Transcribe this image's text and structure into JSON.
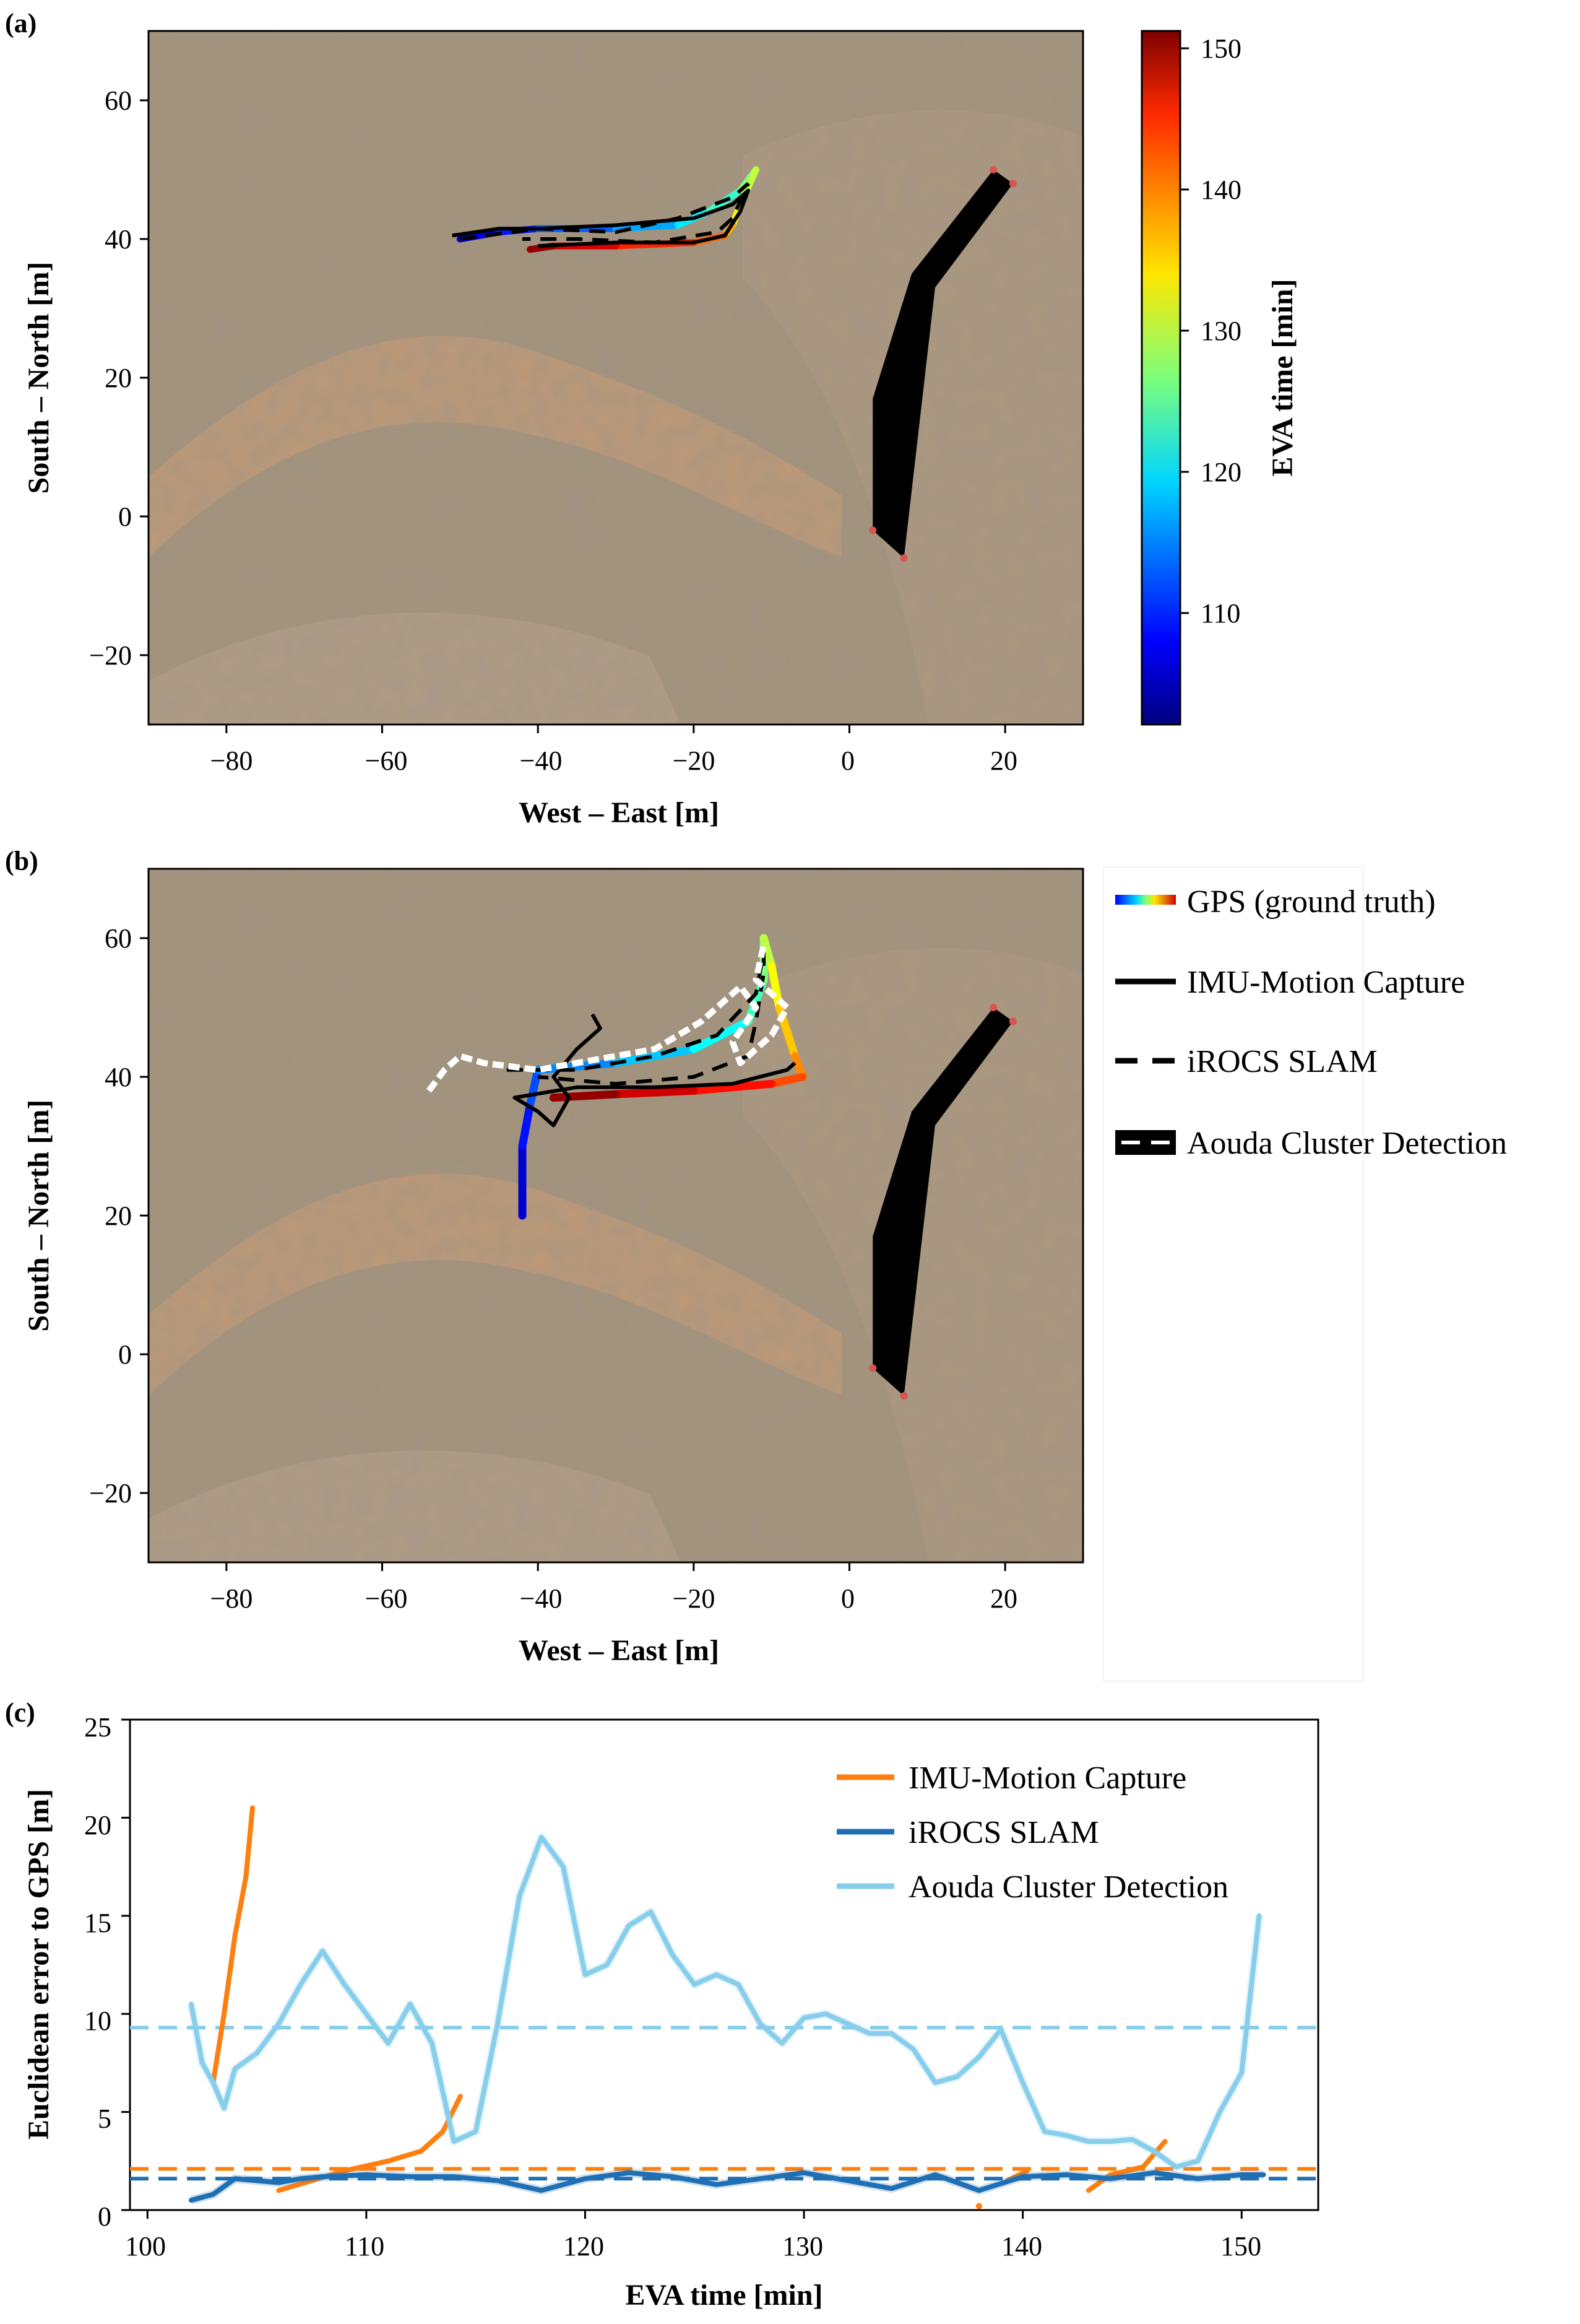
{
  "panel_a": {
    "letter": "(a)",
    "xlabel": "West – East [m]",
    "ylabel": "South – North [m]",
    "xticks": [
      "−80",
      "−60",
      "−40",
      "−20",
      "0",
      "20"
    ],
    "yticks": [
      "60",
      "40",
      "20",
      "0",
      "−20"
    ],
    "colorbar_label": "EVA time [min]",
    "colorbar_ticks": [
      "150",
      "140",
      "130",
      "120",
      "110"
    ]
  },
  "panel_b": {
    "letter": "(b)",
    "xlabel": "West – East [m]",
    "ylabel": "South – North [m]",
    "xticks": [
      "−80",
      "−60",
      "−40",
      "−20",
      "0",
      "20"
    ],
    "yticks": [
      "60",
      "40",
      "20",
      "0",
      "−20"
    ],
    "legend": [
      "GPS (ground truth)",
      "IMU-Motion Capture",
      "iROCS SLAM",
      "Aouda Cluster Detection"
    ]
  },
  "panel_c": {
    "letter": "(c)",
    "xlabel": "EVA time [min]",
    "ylabel": "Euclidean error to GPS [m]",
    "xticks": [
      "100",
      "110",
      "120",
      "130",
      "140",
      "150"
    ],
    "yticks": [
      "25",
      "20",
      "15",
      "10",
      "5",
      "0"
    ],
    "legend": [
      "IMU-Motion Capture",
      "iROCS SLAM",
      "Aouda Cluster Detection"
    ]
  },
  "colors": {
    "imu": "#ff7f0e",
    "slam": "#1f6fb4",
    "aouda": "#87ceeb",
    "aouda_detection_fill": "#000000",
    "background_ground": "#a7957d"
  },
  "chart_data": [
    {
      "type": "scatter",
      "panel": "a",
      "xlim": [
        -90,
        30
      ],
      "ylim": [
        -30,
        70
      ],
      "colorbar_range": [
        102,
        151
      ],
      "series": [
        {
          "name": "GPS (ground truth)",
          "color_by": "EVA time",
          "points": [
            [
              -50,
              40
            ],
            [
              -45,
              41
            ],
            [
              -40,
              41.5
            ],
            [
              -30,
              41.5
            ],
            [
              -22,
              42
            ],
            [
              -18,
              44
            ],
            [
              -14,
              47
            ],
            [
              -12,
              50
            ],
            [
              -14,
              45
            ],
            [
              -15,
              42
            ],
            [
              -16,
              40.5
            ],
            [
              -20,
              39.5
            ],
            [
              -30,
              39
            ],
            [
              -38,
              39
            ],
            [
              -41,
              38.5
            ]
          ]
        },
        {
          "name": "IMU-Motion Capture",
          "points": [
            [
              -51,
              40.5
            ],
            [
              -45,
              41.5
            ],
            [
              -40,
              41.5
            ],
            [
              -30,
              42
            ],
            [
              -20,
              43
            ],
            [
              -15,
              45
            ],
            [
              -13,
              47
            ],
            [
              -14,
              44
            ],
            [
              -16,
              40.5
            ],
            [
              -20,
              39.5
            ],
            [
              -30,
              39.5
            ],
            [
              -40,
              39
            ]
          ]
        },
        {
          "name": "iROCS SLAM",
          "points": [
            [
              -50,
              40
            ],
            [
              -40,
              41.5
            ],
            [
              -30,
              41
            ],
            [
              -22,
              43
            ],
            [
              -15,
              46
            ],
            [
              -13,
              48
            ],
            [
              -15,
              43
            ],
            [
              -17,
              41
            ],
            [
              -25,
              39.5
            ],
            [
              -35,
              40
            ],
            [
              -42,
              40
            ]
          ]
        }
      ],
      "detection_region": [
        [
          18.5,
          50
        ],
        [
          21,
          48
        ],
        [
          11,
          33
        ],
        [
          7,
          -6
        ],
        [
          3,
          -2
        ],
        [
          3,
          17
        ],
        [
          8,
          35
        ]
      ]
    },
    {
      "type": "scatter",
      "panel": "b",
      "xlim": [
        -90,
        30
      ],
      "ylim": [
        -30,
        70
      ],
      "series": [
        {
          "name": "GPS (ground truth)",
          "points": [
            [
              -42,
              20
            ],
            [
              -42,
              30
            ],
            [
              -41,
              36
            ],
            [
              -40,
              41
            ],
            [
              -30,
              42
            ],
            [
              -20,
              44
            ],
            [
              -13,
              48
            ],
            [
              -11,
              54
            ],
            [
              -11,
              60
            ],
            [
              -10,
              56
            ],
            [
              -9,
              50
            ],
            [
              -7,
              43
            ],
            [
              -6,
              40
            ],
            [
              -10,
              39
            ],
            [
              -20,
              38
            ],
            [
              -30,
              37.5
            ],
            [
              -38,
              37
            ]
          ]
        },
        {
          "name": "IMU-Motion Capture",
          "points": [
            [
              -33,
              49
            ],
            [
              -32,
              47
            ],
            [
              -35,
              44
            ],
            [
              -38,
              40
            ],
            [
              -36,
              37
            ],
            [
              -38,
              33
            ],
            [
              -40,
              35
            ],
            [
              -43,
              37
            ],
            [
              -35,
              38.5
            ],
            [
              -25,
              38.5
            ],
            [
              -15,
              39
            ],
            [
              -8,
              41
            ],
            [
              -7,
              42
            ]
          ]
        },
        {
          "name": "iROCS SLAM",
          "points": [
            [
              -44,
              41
            ],
            [
              -35,
              41
            ],
            [
              -25,
              43
            ],
            [
              -17,
              46
            ],
            [
              -12,
              52
            ],
            [
              -11,
              58
            ],
            [
              -11,
              55
            ],
            [
              -12,
              48
            ],
            [
              -13,
              43
            ],
            [
              -20,
              40
            ],
            [
              -30,
              39
            ],
            [
              -40,
              40
            ]
          ]
        },
        {
          "name": "Aouda Cluster Detection",
          "points": [
            [
              -54,
              38
            ],
            [
              -52,
              41
            ],
            [
              -50,
              43
            ],
            [
              -47,
              42
            ],
            [
              -40,
              41
            ],
            [
              -35,
              42
            ],
            [
              -25,
              44
            ],
            [
              -19,
              48
            ],
            [
              -14,
              53
            ],
            [
              -12,
              50
            ],
            [
              -15,
              45
            ],
            [
              -14,
              42
            ],
            [
              -10,
              46
            ],
            [
              -8,
              50
            ],
            [
              -12,
              54
            ],
            [
              -11,
              59
            ]
          ]
        }
      ],
      "detection_region": [
        [
          18.5,
          50
        ],
        [
          21,
          48
        ],
        [
          11,
          33
        ],
        [
          7,
          -6
        ],
        [
          3,
          -2
        ],
        [
          3,
          17
        ],
        [
          8,
          35
        ]
      ]
    },
    {
      "type": "line",
      "panel": "c",
      "xlim": [
        99.2,
        153.5
      ],
      "ylim": [
        0,
        25
      ],
      "series": [
        {
          "name": "IMU-Motion Capture",
          "segments": [
            [
              [
                103,
                6.5
              ],
              [
                103.5,
                10
              ],
              [
                104,
                14
              ],
              [
                104.5,
                17
              ],
              [
                104.8,
                20.5
              ]
            ],
            [
              [
                106,
                1
              ],
              [
                107.5,
                1.5
              ],
              [
                109,
                2
              ],
              [
                111,
                2.5
              ],
              [
                112.5,
                3
              ],
              [
                113.5,
                4
              ],
              [
                114.3,
                5.8
              ]
            ],
            [
              [
                138,
                0.2
              ]
            ],
            [
              [
                139.3,
                1.5
              ],
              [
                140.2,
                2
              ]
            ],
            [
              [
                143,
                1
              ],
              [
                144,
                1.8
              ],
              [
                145.5,
                2.2
              ],
              [
                146.5,
                3.5
              ]
            ]
          ],
          "mean": 2.1
        },
        {
          "name": "iROCS SLAM",
          "x": [
            102,
            103,
            104,
            105,
            106,
            107,
            108,
            110,
            112,
            114,
            116,
            118,
            120,
            122,
            124,
            126,
            128,
            130,
            132,
            134,
            136,
            138,
            140,
            142,
            144,
            146,
            148,
            150,
            151
          ],
          "values": [
            0.5,
            0.8,
            1.6,
            1.5,
            1.4,
            1.6,
            1.7,
            1.8,
            1.7,
            1.7,
            1.5,
            1.0,
            1.6,
            1.9,
            1.7,
            1.3,
            1.6,
            1.9,
            1.5,
            1.1,
            1.8,
            1.0,
            1.7,
            1.8,
            1.6,
            1.9,
            1.6,
            1.8,
            1.8
          ],
          "mean": 1.6
        },
        {
          "name": "Aouda Cluster Detection",
          "x": [
            102,
            102.5,
            103,
            103.5,
            104,
            105,
            106,
            107,
            108,
            109,
            110,
            111,
            112,
            113,
            114,
            115,
            116,
            117,
            118,
            119,
            120,
            121,
            122,
            123,
            124,
            125,
            126,
            127,
            128,
            129,
            130,
            131,
            132,
            133,
            134,
            135,
            136,
            137,
            138,
            139,
            140,
            141,
            142,
            143,
            144,
            145,
            146,
            147,
            148,
            149,
            150,
            150.8
          ],
          "values": [
            10.5,
            7.5,
            6.5,
            5.2,
            7.2,
            8.0,
            9.5,
            11.5,
            13.2,
            11.5,
            10.0,
            8.5,
            10.5,
            8.5,
            3.5,
            4.0,
            9.5,
            16.0,
            19.0,
            17.5,
            12.0,
            12.5,
            14.5,
            15.2,
            13.0,
            11.5,
            12.0,
            11.5,
            9.5,
            8.5,
            9.8,
            10.0,
            9.5,
            9.0,
            9.0,
            8.2,
            6.5,
            6.8,
            7.8,
            9.2,
            6.5,
            4.0,
            3.8,
            3.5,
            3.5,
            3.6,
            3.0,
            2.2,
            2.5,
            5.0,
            7.0,
            15.0
          ],
          "mean": 9.3
        }
      ]
    }
  ]
}
